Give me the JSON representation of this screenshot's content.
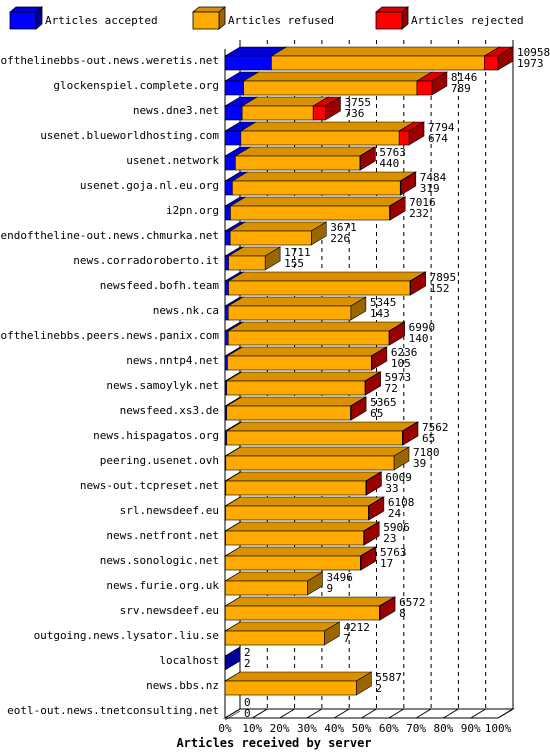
{
  "chart_data": {
    "type": "bar",
    "orientation": "horizontal",
    "stacked": true,
    "xlabel": "Articles received by server",
    "xlim": [
      0,
      100
    ],
    "x_unit": "%",
    "x_ticks": [
      "0%",
      "10%",
      "20%",
      "30%",
      "40%",
      "50%",
      "60%",
      "70%",
      "80%",
      "90%",
      "100%"
    ],
    "legend_position": "top",
    "series": [
      {
        "name": "Articles accepted",
        "color": "#0000ff"
      },
      {
        "name": "Articles refused",
        "color": "#ffaa00"
      },
      {
        "name": "Articles rejected",
        "color": "#ff0000"
      }
    ],
    "rows": [
      {
        "server": "endofthelinebbs-out.news.weretis.net",
        "total": "10958",
        "accepted": "1973",
        "accepted_pct": 17.0,
        "refused_pct": 78.0,
        "rejected_pct": 5.0
      },
      {
        "server": "glockenspiel.complete.org",
        "total": "8146",
        "accepted": "789",
        "accepted_pct": 6.8,
        "refused_pct": 63.5,
        "rejected_pct": 5.5
      },
      {
        "server": "news.dne3.net",
        "total": "3755",
        "accepted": "736",
        "accepted_pct": 6.3,
        "refused_pct": 26.0,
        "rejected_pct": 4.5
      },
      {
        "server": "usenet.blueworldhosting.com",
        "total": "7794",
        "accepted": "674",
        "accepted_pct": 5.8,
        "refused_pct": 58.0,
        "rejected_pct": 3.6
      },
      {
        "server": "usenet.network",
        "total": "5763",
        "accepted": "440",
        "accepted_pct": 3.8,
        "refused_pct": 45.6,
        "rejected_pct": 0.2
      },
      {
        "server": "usenet.goja.nl.eu.org",
        "total": "7484",
        "accepted": "319",
        "accepted_pct": 2.7,
        "refused_pct": 61.5,
        "rejected_pct": 0.2
      },
      {
        "server": "i2pn.org",
        "total": "7016",
        "accepted": "232",
        "accepted_pct": 2.0,
        "refused_pct": 58.3,
        "rejected_pct": 0.2
      },
      {
        "server": "endoftheline-out.news.chmurka.net",
        "total": "3671",
        "accepted": "226",
        "accepted_pct": 1.9,
        "refused_pct": 29.7,
        "rejected_pct": 0.0
      },
      {
        "server": "news.corradoroberto.it",
        "total": "1711",
        "accepted": "155",
        "accepted_pct": 1.3,
        "refused_pct": 13.4,
        "rejected_pct": 0.0
      },
      {
        "server": "newsfeed.bofh.team",
        "total": "7895",
        "accepted": "152",
        "accepted_pct": 1.3,
        "refused_pct": 66.5,
        "rejected_pct": 0.2
      },
      {
        "server": "news.nk.ca",
        "total": "5345",
        "accepted": "143",
        "accepted_pct": 1.2,
        "refused_pct": 44.9,
        "rejected_pct": 0.0
      },
      {
        "server": "endofthelinebbs.peers.news.panix.com",
        "total": "6990",
        "accepted": "140",
        "accepted_pct": 1.2,
        "refused_pct": 58.9,
        "rejected_pct": 0.2
      },
      {
        "server": "news.nntp4.net",
        "total": "6236",
        "accepted": "105",
        "accepted_pct": 0.9,
        "refused_pct": 52.7,
        "rejected_pct": 0.2
      },
      {
        "server": "news.samoylyk.net",
        "total": "5973",
        "accepted": "72",
        "accepted_pct": 0.6,
        "refused_pct": 50.7,
        "rejected_pct": 0.2
      },
      {
        "server": "newsfeed.xs3.de",
        "total": "5365",
        "accepted": "65",
        "accepted_pct": 0.6,
        "refused_pct": 45.4,
        "rejected_pct": 0.2
      },
      {
        "server": "news.hispagatos.org",
        "total": "7562",
        "accepted": "65",
        "accepted_pct": 0.6,
        "refused_pct": 64.4,
        "rejected_pct": 0.2
      },
      {
        "server": "peering.usenet.ovh",
        "total": "7180",
        "accepted": "39",
        "accepted_pct": 0.3,
        "refused_pct": 61.6,
        "rejected_pct": 0.0
      },
      {
        "server": "news-out.tcpreset.net",
        "total": "6009",
        "accepted": "33",
        "accepted_pct": 0.3,
        "refused_pct": 51.3,
        "rejected_pct": 0.2
      },
      {
        "server": "srl.newsdeef.eu",
        "total": "6108",
        "accepted": "24",
        "accepted_pct": 0.2,
        "refused_pct": 52.3,
        "rejected_pct": 0.2
      },
      {
        "server": "news.netfront.net",
        "total": "5906",
        "accepted": "23",
        "accepted_pct": 0.2,
        "refused_pct": 50.6,
        "rejected_pct": 0.2
      },
      {
        "server": "news.sonologic.net",
        "total": "5763",
        "accepted": "17",
        "accepted_pct": 0.1,
        "refused_pct": 49.5,
        "rejected_pct": 0.2
      },
      {
        "server": "news.furie.org.uk",
        "total": "3496",
        "accepted": "9",
        "accepted_pct": 0.1,
        "refused_pct": 30.1,
        "rejected_pct": 0.0
      },
      {
        "server": "srv.newsdeef.eu",
        "total": "6572",
        "accepted": "8",
        "accepted_pct": 0.1,
        "refused_pct": 56.5,
        "rejected_pct": 0.2
      },
      {
        "server": "outgoing.news.lysator.liu.se",
        "total": "4212",
        "accepted": "7",
        "accepted_pct": 0.1,
        "refused_pct": 36.3,
        "rejected_pct": 0.0
      },
      {
        "server": "localhost",
        "total": "2",
        "accepted": "2",
        "accepted_pct": 0.02,
        "refused_pct": 0.0,
        "rejected_pct": 0.0
      },
      {
        "server": "news.bbs.nz",
        "total": "5587",
        "accepted": "2",
        "accepted_pct": 0.02,
        "refused_pct": 48.1,
        "rejected_pct": 0.0
      },
      {
        "server": "eotl-out.news.tnetconsulting.net",
        "total": "0",
        "accepted": "0",
        "accepted_pct": 0.0,
        "refused_pct": 0.0,
        "rejected_pct": 0.0
      }
    ]
  }
}
